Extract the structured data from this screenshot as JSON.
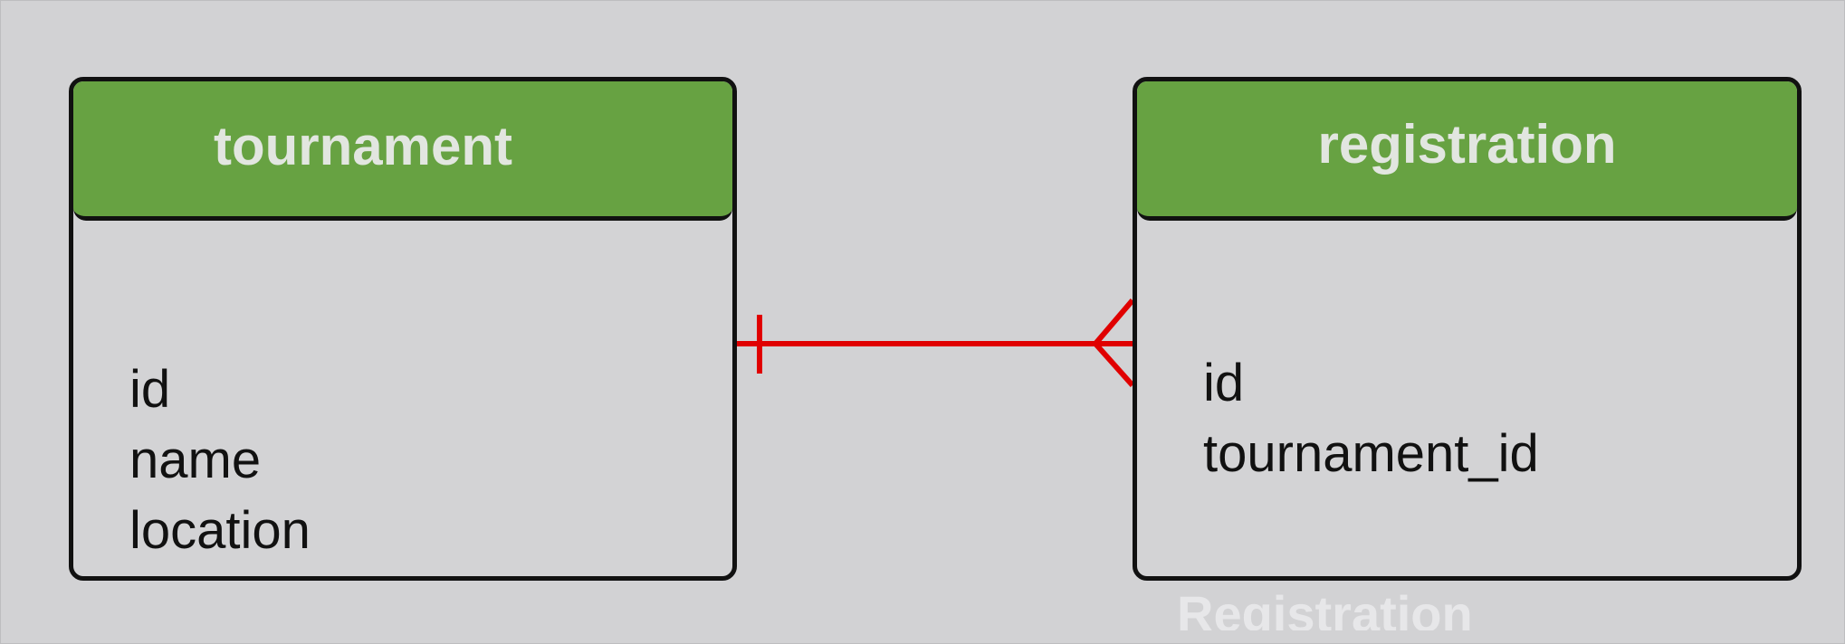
{
  "diagram": {
    "entities": [
      {
        "id": "tournament",
        "title": "tournament",
        "fields": [
          "id",
          "name",
          "location"
        ]
      },
      {
        "id": "registration",
        "title": "registration",
        "fields": [
          "id",
          "tournament_id"
        ]
      }
    ],
    "relationship": {
      "from": "tournament",
      "to": "registration",
      "from_cardinality": "one",
      "to_cardinality": "many",
      "color": "#e00000"
    },
    "caption": "Registration"
  },
  "colors": {
    "background": "#d2d2d4",
    "header": "#67a242",
    "header_text": "#e2e6e0",
    "border": "#111111",
    "relationship": "#e00000"
  }
}
